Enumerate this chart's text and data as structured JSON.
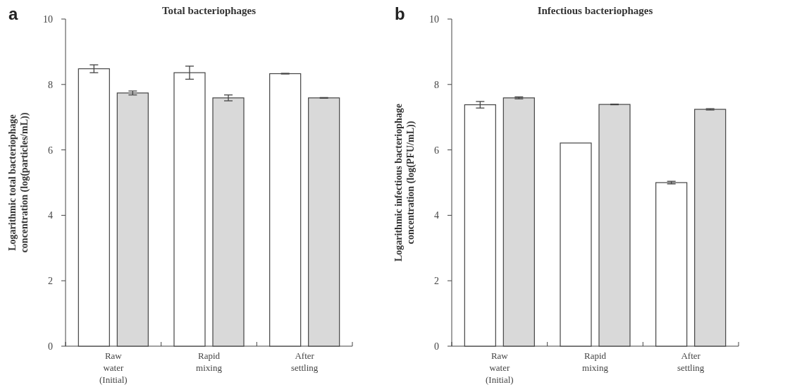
{
  "chart_data": [
    {
      "type": "bar",
      "title": "Total bacteriophages",
      "ylabel": "Logarithmic total bacteriophage concentration (log(particles/mL))",
      "annotations": [
        "a"
      ],
      "categories": [
        "Raw\nwater\n(Initial)",
        "Rapid\nmixing",
        "After\nsettling"
      ],
      "ylim": [
        0,
        10
      ],
      "yticks": [
        0,
        2,
        4,
        6,
        8,
        10
      ],
      "series": [
        {
          "color": "#ffffff",
          "values": [
            8.48,
            8.36,
            8.33
          ],
          "errors": [
            0.12,
            0.2,
            0.01
          ]
        },
        {
          "color": "#d9d9d9",
          "values": [
            7.74,
            7.59,
            7.59
          ],
          "errors": [
            0.06,
            0.09,
            0.01
          ]
        }
      ]
    },
    {
      "type": "bar",
      "title": "Infectious bacteriophages",
      "ylabel": "Logarithmic infectious bacteriophage concentration (log(PFU/mL))",
      "annotations": [
        "b"
      ],
      "categories": [
        "Raw\nwater\n(Initial)",
        "Rapid\nmixing",
        "After\nsettling"
      ],
      "ylim": [
        0,
        10
      ],
      "yticks": [
        0,
        2,
        4,
        6,
        8,
        10
      ],
      "series": [
        {
          "color": "#ffffff",
          "values": [
            7.38,
            6.21,
            5.0
          ],
          "errors": [
            0.1,
            null,
            0.04
          ]
        },
        {
          "color": "#d9d9d9",
          "values": [
            7.59,
            7.39,
            7.24
          ],
          "errors": [
            0.03,
            0.01,
            0.02
          ]
        }
      ]
    }
  ]
}
